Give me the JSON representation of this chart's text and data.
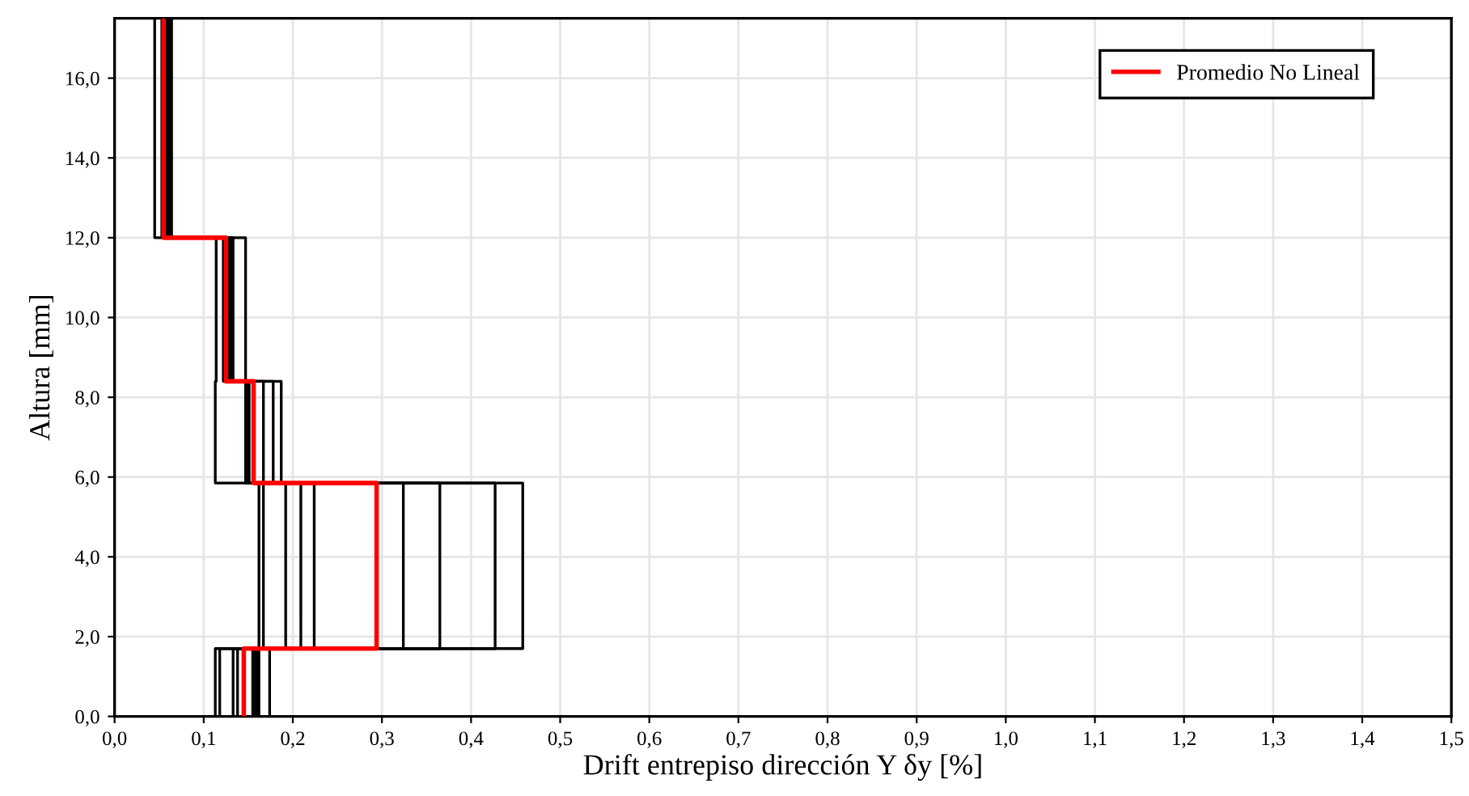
{
  "chart_data": {
    "type": "line",
    "xlabel": "Drift entrepiso dirección Y δy [%]",
    "ylabel": "Altura [mm]",
    "xlim": [
      0,
      1.5
    ],
    "ylim": [
      0,
      17.5
    ],
    "xticks": [
      {
        "value": 0,
        "label": "0,0"
      },
      {
        "value": 0.1,
        "label": "0,1"
      },
      {
        "value": 0.2,
        "label": "0,2"
      },
      {
        "value": 0.3,
        "label": "0,3"
      },
      {
        "value": 0.4,
        "label": "0,4"
      },
      {
        "value": 0.5,
        "label": "0,5"
      },
      {
        "value": 0.6,
        "label": "0,6"
      },
      {
        "value": 0.7,
        "label": "0,7"
      },
      {
        "value": 0.8,
        "label": "0,8"
      },
      {
        "value": 0.9,
        "label": "0,9"
      },
      {
        "value": 1.0,
        "label": "1,0"
      },
      {
        "value": 1.1,
        "label": "1,1"
      },
      {
        "value": 1.2,
        "label": "1,2"
      },
      {
        "value": 1.3,
        "label": "1,3"
      },
      {
        "value": 1.4,
        "label": "1,4"
      },
      {
        "value": 1.5,
        "label": "1,5"
      }
    ],
    "yticks": [
      {
        "value": 0,
        "label": "0,0"
      },
      {
        "value": 2,
        "label": "2,0"
      },
      {
        "value": 4,
        "label": "4,0"
      },
      {
        "value": 6,
        "label": "6,0"
      },
      {
        "value": 8,
        "label": "8,0"
      },
      {
        "value": 10,
        "label": "10,0"
      },
      {
        "value": 12,
        "label": "12,0"
      },
      {
        "value": 14,
        "label": "14,0"
      },
      {
        "value": 16,
        "label": "16,0"
      }
    ],
    "grid": true,
    "legend": "top right",
    "marker": "none",
    "line_style": "solid",
    "series": [
      {
        "color": "#000000",
        "x": [
          0.113,
          0.113,
          0.162,
          0.162,
          0.113,
          0.113,
          0.114,
          0.114,
          0.045,
          0.045
        ],
        "values": [
          0,
          1.7,
          1.7,
          5.85,
          5.85,
          8.4,
          8.4,
          12.0,
          12.0,
          17.5
        ]
      },
      {
        "color": "#000000",
        "x": [
          0.118,
          0.118,
          0.167,
          0.167,
          0.147,
          0.147,
          0.122,
          0.122,
          0.053,
          0.053
        ],
        "values": [
          0,
          1.7,
          1.7,
          5.85,
          5.85,
          8.4,
          8.4,
          12.0,
          12.0,
          17.5
        ]
      },
      {
        "color": "#000000",
        "x": [
          0.133,
          0.133,
          0.192,
          0.192,
          0.149,
          0.149,
          0.125,
          0.125,
          0.055,
          0.055
        ],
        "values": [
          0,
          1.7,
          1.7,
          5.85,
          5.85,
          8.4,
          8.4,
          12.0,
          12.0,
          17.5
        ]
      },
      {
        "color": "#000000",
        "x": [
          0.138,
          0.138,
          0.209,
          0.209,
          0.15,
          0.15,
          0.127,
          0.127,
          0.056,
          0.056
        ],
        "values": [
          0,
          1.7,
          1.7,
          5.85,
          5.85,
          8.4,
          8.4,
          12.0,
          12.0,
          17.5
        ]
      },
      {
        "color": "#000000",
        "x": [
          0.155,
          0.155,
          0.224,
          0.224,
          0.151,
          0.151,
          0.128,
          0.128,
          0.057,
          0.057
        ],
        "values": [
          0,
          1.7,
          1.7,
          5.85,
          5.85,
          8.4,
          8.4,
          12.0,
          12.0,
          17.5
        ]
      },
      {
        "color": "#000000",
        "x": [
          0.158,
          0.158,
          0.324,
          0.324,
          0.167,
          0.167,
          0.129,
          0.129,
          0.059,
          0.059
        ],
        "values": [
          0,
          1.7,
          1.7,
          5.85,
          5.85,
          8.4,
          8.4,
          12.0,
          12.0,
          17.5
        ]
      },
      {
        "color": "#000000",
        "x": [
          0.16,
          0.16,
          0.365,
          0.365,
          0.178,
          0.178,
          0.131,
          0.131,
          0.061,
          0.061
        ],
        "values": [
          0,
          1.7,
          1.7,
          5.85,
          5.85,
          8.4,
          8.4,
          12.0,
          12.0,
          17.5
        ]
      },
      {
        "color": "#000000",
        "x": [
          0.162,
          0.162,
          0.427,
          0.427,
          0.187,
          0.187,
          0.133,
          0.133,
          0.063,
          0.063
        ],
        "values": [
          0,
          1.7,
          1.7,
          5.85,
          5.85,
          8.4,
          8.4,
          12.0,
          12.0,
          17.5
        ]
      },
      {
        "color": "#000000",
        "x": [
          0.174,
          0.174,
          0.458,
          0.458,
          0.149,
          0.149,
          0.147,
          0.147,
          0.064,
          0.064
        ],
        "values": [
          0,
          1.7,
          1.7,
          5.85,
          5.85,
          8.4,
          8.4,
          12.0,
          12.0,
          17.5
        ]
      },
      {
        "name": "Promedio No Lineal",
        "color": "#ff0000",
        "x": [
          0.145,
          0.145,
          0.294,
          0.294,
          0.156,
          0.156,
          0.125,
          0.125,
          0.055,
          0.055
        ],
        "values": [
          0,
          1.7,
          1.7,
          5.85,
          5.85,
          8.4,
          8.4,
          12.0,
          12.0,
          17.5
        ]
      }
    ]
  }
}
